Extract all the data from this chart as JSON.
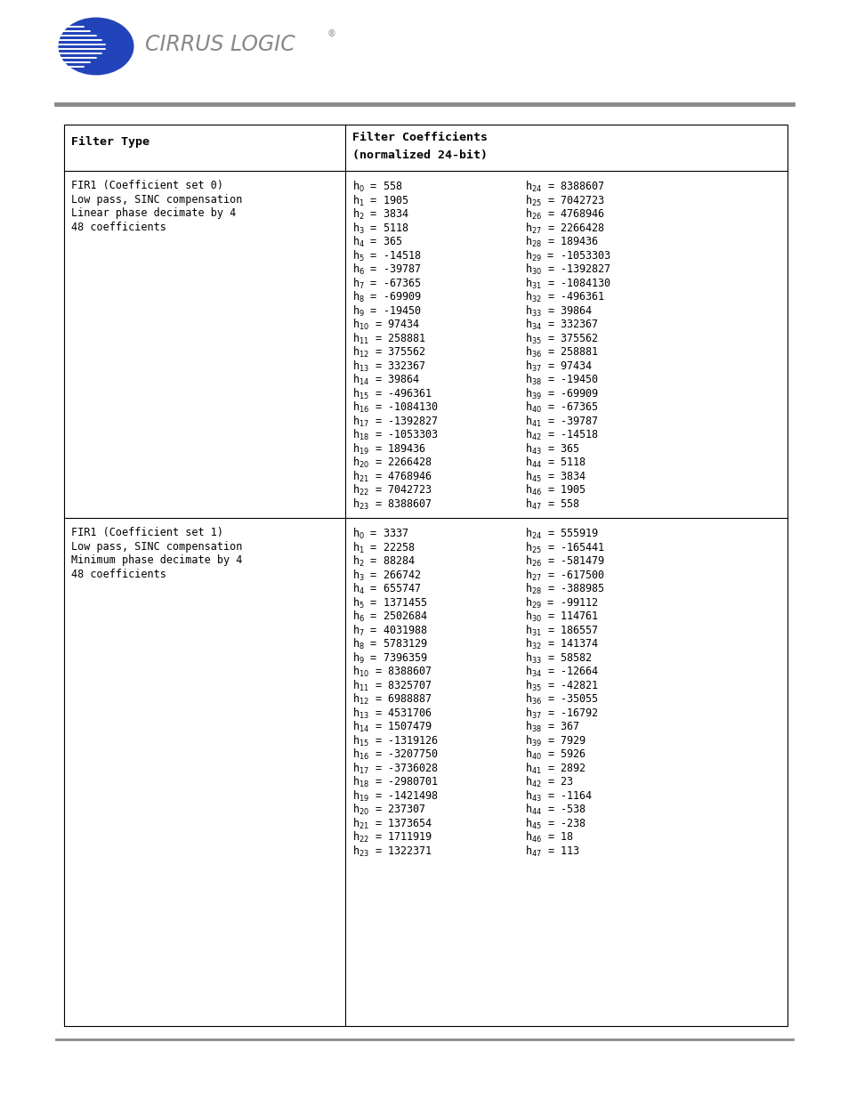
{
  "header_col1": "Filter Type",
  "header_col2_line1": "Filter Coefficients",
  "header_col2_line2": "(normalized 24-bit)",
  "row1_type": [
    "FIR1 (Coefficient set 0)",
    "Low pass, SINC compensation",
    "Linear phase decimate by 4",
    "48 coefficients"
  ],
  "row1_left_coefs": [
    [
      "0",
      "= 558"
    ],
    [
      "1",
      "= 1905"
    ],
    [
      "2",
      "= 3834"
    ],
    [
      "3",
      "= 5118"
    ],
    [
      "4",
      "= 365"
    ],
    [
      "5",
      "= -14518"
    ],
    [
      "6",
      "= -39787"
    ],
    [
      "7",
      "= -67365"
    ],
    [
      "8",
      "= -69909"
    ],
    [
      "9",
      "= -19450"
    ],
    [
      "10",
      "= 97434"
    ],
    [
      "11",
      "= 258881"
    ],
    [
      "12",
      "= 375562"
    ],
    [
      "13",
      "= 332367"
    ],
    [
      "14",
      "= 39864"
    ],
    [
      "15",
      "= -496361"
    ],
    [
      "16",
      "= -1084130"
    ],
    [
      "17",
      "= -1392827"
    ],
    [
      "18",
      "= -1053303"
    ],
    [
      "19",
      "= 189436"
    ],
    [
      "20",
      "= 2266428"
    ],
    [
      "21",
      "= 4768946"
    ],
    [
      "22",
      "= 7042723"
    ],
    [
      "23",
      "= 8388607"
    ]
  ],
  "row1_right_coefs": [
    [
      "24",
      "= 8388607"
    ],
    [
      "25",
      "= 7042723"
    ],
    [
      "26",
      "= 4768946"
    ],
    [
      "27",
      "= 2266428"
    ],
    [
      "28",
      "= 189436"
    ],
    [
      "29",
      "= -1053303"
    ],
    [
      "30",
      "= -1392827"
    ],
    [
      "31",
      "= -1084130"
    ],
    [
      "32",
      "= -496361"
    ],
    [
      "33",
      "= 39864"
    ],
    [
      "34",
      "= 332367"
    ],
    [
      "35",
      "= 375562"
    ],
    [
      "36",
      "= 258881"
    ],
    [
      "37",
      "= 97434"
    ],
    [
      "38",
      "= -19450"
    ],
    [
      "39",
      "= -69909"
    ],
    [
      "40",
      "= -67365"
    ],
    [
      "41",
      "= -39787"
    ],
    [
      "42",
      "= -14518"
    ],
    [
      "43",
      "= 365"
    ],
    [
      "44",
      "= 5118"
    ],
    [
      "45",
      "= 3834"
    ],
    [
      "46",
      "= 1905"
    ],
    [
      "47",
      "= 558"
    ]
  ],
  "row2_type": [
    "FIR1 (Coefficient set 1)",
    "Low pass, SINC compensation",
    "Minimum phase decimate by 4",
    "48 coefficients"
  ],
  "row2_left_coefs": [
    [
      "0",
      "= 3337"
    ],
    [
      "1",
      "= 22258"
    ],
    [
      "2",
      "= 88284"
    ],
    [
      "3",
      "= 266742"
    ],
    [
      "4",
      "= 655747"
    ],
    [
      "5",
      "= 1371455"
    ],
    [
      "6",
      "= 2502684"
    ],
    [
      "7",
      "= 4031988"
    ],
    [
      "8",
      "= 5783129"
    ],
    [
      "9",
      "= 7396359"
    ],
    [
      "10",
      "= 8388607"
    ],
    [
      "11",
      "= 8325707"
    ],
    [
      "12",
      "= 6988887"
    ],
    [
      "13",
      "= 4531706"
    ],
    [
      "14",
      "= 1507479"
    ],
    [
      "15",
      "= -1319126"
    ],
    [
      "16",
      "= -3207750"
    ],
    [
      "17",
      "= -3736028"
    ],
    [
      "18",
      "= -2980701"
    ],
    [
      "19",
      "= -1421498"
    ],
    [
      "20",
      "= 237307"
    ],
    [
      "21",
      "= 1373654"
    ],
    [
      "22",
      "= 1711919"
    ],
    [
      "23",
      "= 1322371"
    ]
  ],
  "row2_right_coefs": [
    [
      "24",
      "= 555919"
    ],
    [
      "25",
      "= -165441"
    ],
    [
      "26",
      "= -581479"
    ],
    [
      "27",
      "= -617500"
    ],
    [
      "28",
      "= -388985"
    ],
    [
      "29",
      "= -99112"
    ],
    [
      "30",
      "= 114761"
    ],
    [
      "31",
      "= 186557"
    ],
    [
      "32",
      "= 141374"
    ],
    [
      "33",
      "= 58582"
    ],
    [
      "34",
      "= -12664"
    ],
    [
      "35",
      "= -42821"
    ],
    [
      "36",
      "= -35055"
    ],
    [
      "37",
      "= -16792"
    ],
    [
      "38",
      "= 367"
    ],
    [
      "39",
      "= 7929"
    ],
    [
      "40",
      "= 5926"
    ],
    [
      "41",
      "= 2892"
    ],
    [
      "42",
      "= 23"
    ],
    [
      "43",
      "= -1164"
    ],
    [
      "44",
      "= -538"
    ],
    [
      "45",
      "= -238"
    ],
    [
      "46",
      "= 18"
    ],
    [
      "47",
      "= 113"
    ]
  ],
  "logo_blue": "#2244BB",
  "logo_gray": "#888888",
  "line_color": "#000000",
  "mono_font": "DejaVu Sans Mono",
  "fs_table": 8.5,
  "fs_header": 9.5,
  "fs_logo_text": 17
}
